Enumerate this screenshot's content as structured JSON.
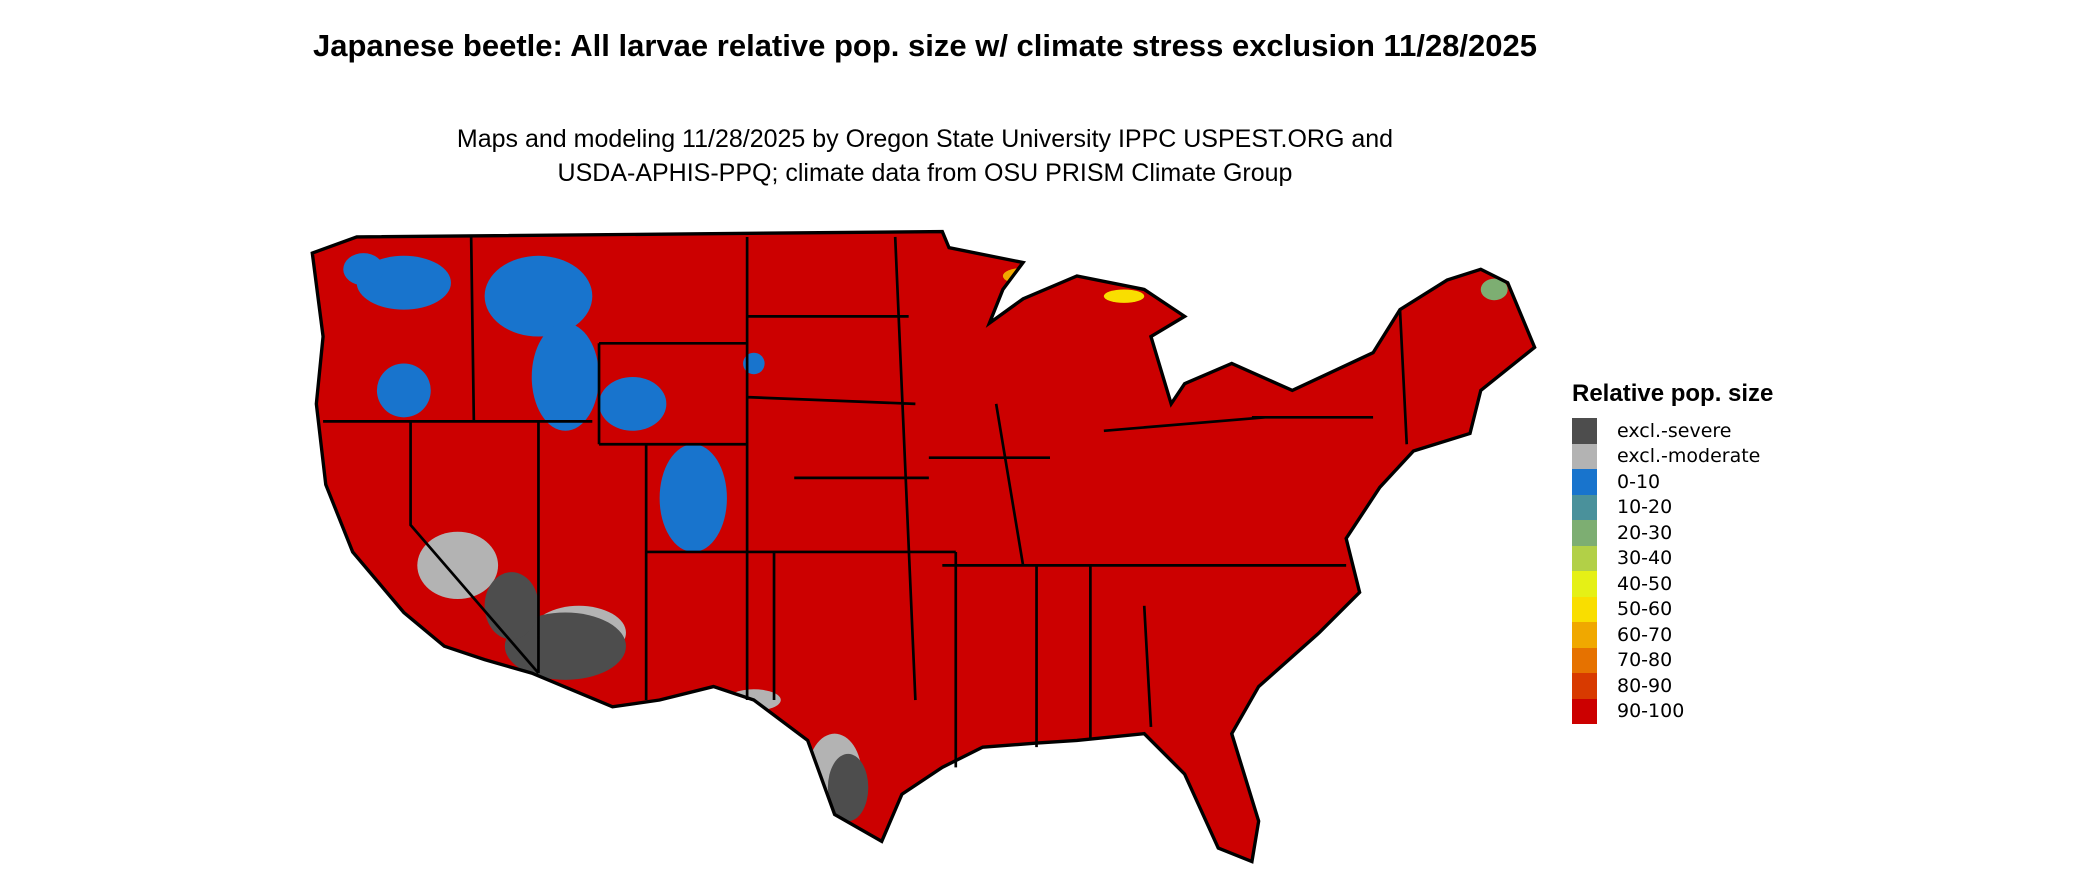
{
  "title": "Japanese beetle: All larvae relative pop. size w/ climate stress exclusion 11/28/2025",
  "subtitle_line1": "Maps and modeling 11/28/2025 by Oregon State University IPPC USPEST.ORG and",
  "subtitle_line2": "USDA-APHIS-PPQ; climate data from OSU PRISM Climate Group",
  "map": {
    "region": "Contiguous United States",
    "dominant_class": "90-100",
    "border_color": "#000000"
  },
  "legend": {
    "title": "Relative pop. size",
    "items": [
      {
        "label": "excl.-severe",
        "color": "#4d4d4d"
      },
      {
        "label": "excl.-moderate",
        "color": "#b3b3b3"
      },
      {
        "label": "0-10",
        "color": "#1874cd"
      },
      {
        "label": "10-20",
        "color": "#4a919b"
      },
      {
        "label": "20-30",
        "color": "#7dae72"
      },
      {
        "label": "30-40",
        "color": "#b2d047"
      },
      {
        "label": "40-50",
        "color": "#e5f016"
      },
      {
        "label": "50-60",
        "color": "#f9de00"
      },
      {
        "label": "60-70",
        "color": "#f0a800"
      },
      {
        "label": "70-80",
        "color": "#e67200"
      },
      {
        "label": "80-90",
        "color": "#d83a00"
      },
      {
        "label": "90-100",
        "color": "#cc0000"
      }
    ]
  }
}
